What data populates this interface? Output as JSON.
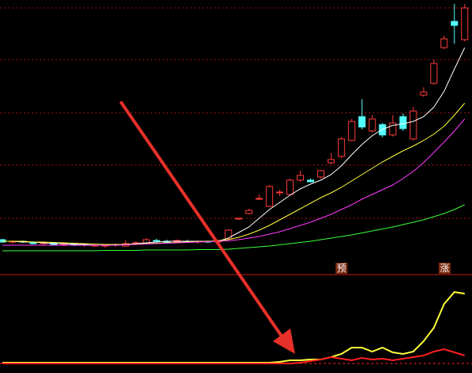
{
  "chart_data": [
    {
      "type": "candlestick",
      "ylim": [
        0,
        34.5
      ],
      "yticks": [
        7,
        13.7,
        20.3,
        27,
        33.5
      ],
      "grid": true,
      "up_color": "#ff3b3b",
      "down_color": "#54ffff",
      "candles": [
        [
          4.3,
          4.4,
          3.9,
          4.0
        ],
        [
          4.0,
          4.2,
          3.8,
          4.1
        ],
        [
          4.1,
          4.2,
          3.9,
          4.0
        ],
        [
          3.9,
          4.1,
          3.7,
          3.8
        ],
        [
          3.8,
          4.0,
          3.6,
          3.9
        ],
        [
          3.9,
          4.0,
          3.6,
          3.7
        ],
        [
          3.7,
          3.9,
          3.5,
          3.8
        ],
        [
          3.8,
          3.9,
          3.5,
          3.6
        ],
        [
          3.6,
          3.8,
          3.4,
          3.7
        ],
        [
          3.5,
          3.8,
          3.4,
          3.6
        ],
        [
          3.5,
          3.7,
          3.3,
          3.6
        ],
        [
          3.6,
          3.8,
          3.4,
          3.7
        ],
        [
          3.5,
          4.2,
          3.4,
          3.8
        ],
        [
          3.8,
          4.1,
          3.6,
          3.9
        ],
        [
          3.9,
          4.5,
          3.7,
          4.3
        ],
        [
          4.2,
          4.4,
          4.0,
          4.1
        ],
        [
          4.1,
          4.3,
          3.9,
          4.0
        ],
        [
          4.0,
          4.3,
          3.9,
          4.2
        ],
        [
          4.1,
          4.3,
          3.9,
          4.0
        ],
        [
          4.0,
          4.2,
          3.8,
          4.1
        ],
        [
          4.1,
          4.2,
          3.9,
          4.0
        ],
        [
          4.0,
          4.3,
          3.8,
          4.2
        ],
        [
          4.4,
          5.6,
          4.3,
          5.5
        ],
        [
          6.9,
          7.0,
          6.8,
          7.0
        ],
        [
          7.6,
          8.2,
          7.5,
          8.0
        ],
        [
          9.4,
          10.0,
          9.3,
          9.5
        ],
        [
          8.5,
          11.2,
          8.4,
          11.0
        ],
        [
          10.2,
          10.6,
          9.8,
          10.3
        ],
        [
          10.0,
          12.0,
          9.9,
          11.8
        ],
        [
          11.8,
          13.0,
          11.6,
          12.4
        ],
        [
          11.8,
          12.0,
          11.5,
          11.6
        ],
        [
          12.2,
          13.1,
          12.0,
          13.0
        ],
        [
          14.0,
          15.2,
          13.8,
          14.4
        ],
        [
          14.8,
          17.2,
          14.6,
          17.0
        ],
        [
          16.8,
          19.5,
          16.7,
          19.2
        ],
        [
          19.8,
          22.0,
          18.2,
          18.5
        ],
        [
          18.0,
          20.0,
          17.8,
          19.5
        ],
        [
          18.8,
          19.0,
          17.2,
          17.5
        ],
        [
          17.5,
          20.0,
          17.3,
          19.0
        ],
        [
          19.8,
          20.2,
          18.0,
          18.3
        ],
        [
          17.0,
          21.0,
          16.8,
          20.5
        ],
        [
          22.5,
          23.5,
          22.3,
          22.9
        ],
        [
          24.0,
          27.0,
          23.8,
          26.5
        ],
        [
          28.5,
          30.0,
          28.3,
          29.6
        ],
        [
          31.8,
          34.0,
          29.0,
          31.3
        ],
        [
          29.5,
          34.0,
          29.3,
          33.5
        ]
      ],
      "lines": [
        {
          "color": "#ffffff",
          "values": [
            4.1,
            4.1,
            4.0,
            4.0,
            3.9,
            3.8,
            3.8,
            3.7,
            3.7,
            3.6,
            3.6,
            3.6,
            3.7,
            3.8,
            3.9,
            4.0,
            4.1,
            4.1,
            4.1,
            4.1,
            4.1,
            4.1,
            4.5,
            5.2,
            5.9,
            7.0,
            8.1,
            9.0,
            9.9,
            10.7,
            11.3,
            11.8,
            12.5,
            13.6,
            15.0,
            16.3,
            17.4,
            18.2,
            18.7,
            18.9,
            19.2,
            19.8,
            21.0,
            23.0,
            25.8,
            28.5
          ]
        },
        {
          "color": "#ffff3b",
          "values": [
            4.1,
            4.1,
            4.1,
            4.0,
            4.0,
            3.95,
            3.9,
            3.85,
            3.8,
            3.75,
            3.7,
            3.7,
            3.7,
            3.75,
            3.8,
            3.85,
            3.9,
            3.95,
            4.0,
            4.05,
            4.1,
            4.15,
            4.3,
            4.6,
            5.0,
            5.5,
            6.1,
            6.8,
            7.5,
            8.2,
            8.9,
            9.6,
            10.2,
            10.9,
            11.7,
            12.5,
            13.3,
            14.1,
            14.8,
            15.5,
            16.1,
            16.8,
            17.6,
            18.6,
            20.0,
            21.5
          ]
        },
        {
          "color": "#ff3bff",
          "values": [
            3.6,
            3.6,
            3.6,
            3.6,
            3.6,
            3.6,
            3.6,
            3.6,
            3.6,
            3.6,
            3.6,
            3.6,
            3.65,
            3.7,
            3.75,
            3.8,
            3.85,
            3.9,
            3.95,
            4.0,
            4.05,
            4.1,
            4.15,
            4.3,
            4.5,
            4.7,
            5.0,
            5.3,
            5.7,
            6.1,
            6.5,
            7.0,
            7.5,
            8.1,
            8.7,
            9.4,
            10.0,
            10.6,
            11.2,
            12.0,
            12.9,
            14.0,
            15.3,
            16.6,
            18.0,
            19.5
          ]
        },
        {
          "color": "#3bff3b",
          "values": [
            2.9,
            2.9,
            2.9,
            2.9,
            2.9,
            2.9,
            2.9,
            2.9,
            2.9,
            2.9,
            2.95,
            2.95,
            2.95,
            2.95,
            3.0,
            3.0,
            3.0,
            3.0,
            3.0,
            3.05,
            3.05,
            3.05,
            3.1,
            3.2,
            3.3,
            3.4,
            3.5,
            3.65,
            3.8,
            3.95,
            4.1,
            4.3,
            4.5,
            4.7,
            4.9,
            5.15,
            5.4,
            5.65,
            5.9,
            6.2,
            6.5,
            6.8,
            7.2,
            7.6,
            8.1,
            8.7
          ]
        }
      ],
      "annotations": [
        "预",
        "涨"
      ]
    },
    {
      "type": "line",
      "ylim": [
        0,
        100
      ],
      "series": [
        {
          "color": "#ffff3b",
          "values": [
            1,
            1,
            1,
            1,
            1,
            1,
            1,
            1,
            1,
            1,
            1,
            1,
            1,
            1,
            1,
            1,
            1,
            1,
            1,
            1,
            1,
            1,
            1,
            1,
            1,
            1,
            1,
            2,
            4,
            4,
            5,
            5,
            8,
            12,
            20,
            20,
            15,
            20,
            14,
            12,
            15,
            28,
            45,
            75,
            90,
            88
          ]
        },
        {
          "color": "#ff2020",
          "values": [
            0,
            0,
            0,
            0,
            0,
            0,
            0,
            0,
            0,
            0,
            0,
            0,
            0,
            0,
            0,
            0,
            0,
            0,
            0,
            0,
            0,
            0,
            0,
            0,
            0,
            0,
            0,
            0,
            0,
            1,
            3,
            5,
            8,
            6,
            4,
            7,
            5,
            6,
            4,
            6,
            8,
            10,
            15,
            18,
            14,
            10
          ]
        }
      ]
    }
  ]
}
